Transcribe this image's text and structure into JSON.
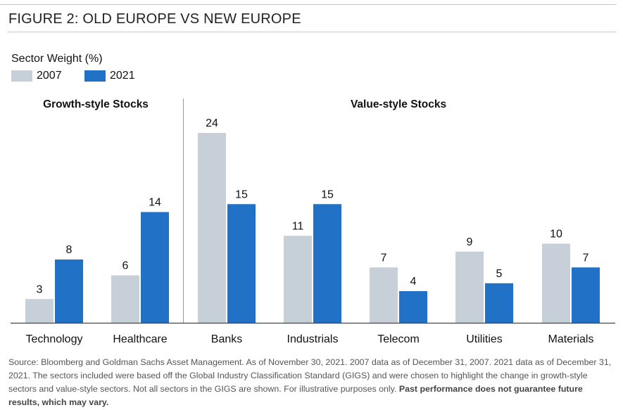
{
  "figure_title": "FIGURE 2: OLD EUROPE VS NEW EUROPE",
  "legend": {
    "title": "Sector Weight (%)",
    "items": [
      {
        "label": "2007",
        "color": "#c7cfd8"
      },
      {
        "label": "2021",
        "color": "#2171c7"
      }
    ]
  },
  "chart_data": {
    "type": "bar",
    "title": "",
    "xlabel": "",
    "ylabel": "Sector Weight (%)",
    "ylim": [
      0,
      24
    ],
    "grid": false,
    "legend_position": "top-left",
    "groups": [
      {
        "label": "Growth-style Stocks",
        "categories": [
          "Technology",
          "Healthcare"
        ]
      },
      {
        "label": "Value-style Stocks",
        "categories": [
          "Banks",
          "Industrials",
          "Telecom",
          "Utilities",
          "Materials"
        ]
      }
    ],
    "categories": [
      "Technology",
      "Healthcare",
      "Banks",
      "Industrials",
      "Telecom",
      "Utilities",
      "Materials"
    ],
    "series": [
      {
        "name": "2007",
        "color": "#c7cfd8",
        "values": [
          3,
          6,
          24,
          11,
          7,
          9,
          10
        ]
      },
      {
        "name": "2021",
        "color": "#2171c7",
        "values": [
          8,
          14,
          15,
          15,
          4,
          5,
          7
        ]
      }
    ]
  },
  "source_note": {
    "text": "Source: Bloomberg and Goldman Sachs Asset Management. As of November 30, 2021. 2007 data as of December 31, 2007. 2021 data as of December 31, 2021. The sectors included were based off the Global Industry Classification Standard (GIGS) and were chosen to highlight the change in growth-style sectors and value-style sectors. Not all sectors in the GIGS are shown. For illustrative purposes only.",
    "bold": "Past performance does not guarantee future results, which may vary."
  }
}
